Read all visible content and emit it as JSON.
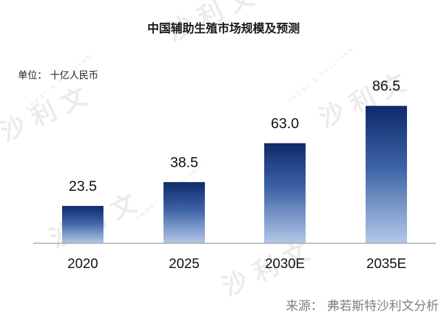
{
  "chart_data": {
    "type": "bar",
    "title": "中国辅助生殖市场规模及预测",
    "unit_label": "单位：  十亿人民币",
    "categories": [
      "2020",
      "2025",
      "2030E",
      "2035E"
    ],
    "values": [
      23.5,
      38.5,
      63.0,
      86.5
    ],
    "value_labels": [
      "23.5",
      "38.5",
      "63.0",
      "86.5"
    ],
    "ylim": [
      0,
      100
    ],
    "xlabel": "",
    "ylabel": "",
    "grid": false,
    "legend": "none",
    "colors": {
      "bar_top": "#0e2a6b",
      "bar_bottom": "#b3c8e8",
      "axis": "#9a9a9a"
    }
  },
  "source": "来源：  弗若斯特沙利文分析"
}
